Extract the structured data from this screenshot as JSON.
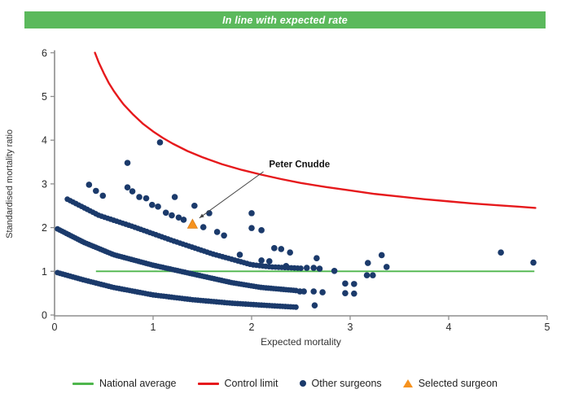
{
  "banner": {
    "text": "In line with expected rate",
    "bg_color": "#5bb95c",
    "text_color": "#ffffff"
  },
  "chart_data": {
    "type": "scatter",
    "title": "",
    "xlabel": "Expected mortality",
    "ylabel": "Standardised mortality ratio",
    "xlim": [
      0,
      5
    ],
    "ylim": [
      0,
      6
    ],
    "xticks": [
      "0",
      "1",
      "2",
      "3",
      "4",
      "5"
    ],
    "yticks": [
      "0",
      "1",
      "2",
      "3",
      "4",
      "5",
      "6"
    ],
    "grid": false,
    "axis_color": "#8e8e8e",
    "tick_label_color": "#2b2b2b",
    "national_average": {
      "label": "National average",
      "y": 1,
      "x_start": 0.42,
      "x_end": 4.87,
      "color": "#4eb64c"
    },
    "control_limit": {
      "label": "Control limit",
      "color": "#e6191c",
      "points": [
        [
          0.41,
          6.0
        ],
        [
          0.45,
          5.77
        ],
        [
          0.5,
          5.53
        ],
        [
          0.55,
          5.31
        ],
        [
          0.6,
          5.13
        ],
        [
          0.65,
          4.97
        ],
        [
          0.7,
          4.82
        ],
        [
          0.8,
          4.58
        ],
        [
          0.9,
          4.37
        ],
        [
          1.0,
          4.2
        ],
        [
          1.1,
          4.05
        ],
        [
          1.2,
          3.92
        ],
        [
          1.35,
          3.75
        ],
        [
          1.5,
          3.61
        ],
        [
          1.7,
          3.45
        ],
        [
          1.9,
          3.32
        ],
        [
          2.1,
          3.21
        ],
        [
          2.3,
          3.11
        ],
        [
          2.5,
          3.02
        ],
        [
          2.75,
          2.93
        ],
        [
          3.0,
          2.85
        ],
        [
          3.25,
          2.77
        ],
        [
          3.5,
          2.71
        ],
        [
          3.75,
          2.65
        ],
        [
          4.0,
          2.6
        ],
        [
          4.25,
          2.55
        ],
        [
          4.5,
          2.51
        ],
        [
          4.7,
          2.48
        ],
        [
          4.88,
          2.45
        ]
      ]
    },
    "selected_surgeon": {
      "label": "Peter Cnudde",
      "x": 1.4,
      "y": 2.07,
      "color": "#f6921e",
      "label_x": 2.16,
      "label_y": 3.45,
      "arrow_start": [
        2.12,
        3.28
      ],
      "arrow_end": [
        1.47,
        2.22
      ]
    },
    "other_surgeons": {
      "color": "#1b3a6b",
      "bands_note": "dense curved chains of surgeons; dots placed evenly along piecewise-linear anchors [expected mortality, SMR]",
      "bands": [
        {
          "anchors": [
            [
              0.03,
              0.97
            ],
            [
              0.3,
              0.8
            ],
            [
              0.6,
              0.63
            ],
            [
              1.0,
              0.46
            ],
            [
              1.4,
              0.35
            ],
            [
              1.8,
              0.27
            ],
            [
              2.15,
              0.22
            ],
            [
              2.45,
              0.18
            ]
          ],
          "dot_count": 92
        },
        {
          "anchors": [
            [
              0.03,
              1.97
            ],
            [
              0.3,
              1.66
            ],
            [
              0.6,
              1.38
            ],
            [
              1.0,
              1.14
            ],
            [
              1.4,
              0.94
            ],
            [
              1.8,
              0.74
            ],
            [
              2.1,
              0.63
            ],
            [
              2.45,
              0.56
            ]
          ],
          "dot_count": 100
        },
        {
          "anchors": [
            [
              0.13,
              2.65
            ],
            [
              0.45,
              2.28
            ],
            [
              0.8,
              2.02
            ],
            [
              1.2,
              1.7
            ],
            [
              1.6,
              1.4
            ],
            [
              2.0,
              1.15
            ],
            [
              2.2,
              1.1
            ],
            [
              2.5,
              1.07
            ]
          ],
          "dot_count": 78
        }
      ],
      "points": [
        [
          0.35,
          2.98
        ],
        [
          0.42,
          2.84
        ],
        [
          0.49,
          2.73
        ],
        [
          0.74,
          2.92
        ],
        [
          0.79,
          2.83
        ],
        [
          0.86,
          2.7
        ],
        [
          0.93,
          2.67
        ],
        [
          0.99,
          2.52
        ],
        [
          1.05,
          2.48
        ],
        [
          1.13,
          2.34
        ],
        [
          1.19,
          2.28
        ],
        [
          1.26,
          2.23
        ],
        [
          1.31,
          2.18
        ],
        [
          0.74,
          3.48
        ],
        [
          1.07,
          3.95
        ],
        [
          1.22,
          2.7
        ],
        [
          1.42,
          2.5
        ],
        [
          1.57,
          2.33
        ],
        [
          2.0,
          2.33
        ],
        [
          1.51,
          2.01
        ],
        [
          1.65,
          1.9
        ],
        [
          1.72,
          1.82
        ],
        [
          2.0,
          1.99
        ],
        [
          2.1,
          1.94
        ],
        [
          1.88,
          1.38
        ],
        [
          2.23,
          1.53
        ],
        [
          2.3,
          1.51
        ],
        [
          2.39,
          1.43
        ],
        [
          2.1,
          1.25
        ],
        [
          2.18,
          1.23
        ],
        [
          2.35,
          1.12
        ],
        [
          2.56,
          1.08
        ],
        [
          2.63,
          1.08
        ],
        [
          2.69,
          1.06
        ],
        [
          2.84,
          1.01
        ],
        [
          2.66,
          1.3
        ],
        [
          2.49,
          0.54
        ],
        [
          2.53,
          0.54
        ],
        [
          2.63,
          0.54
        ],
        [
          2.72,
          0.52
        ],
        [
          2.95,
          0.72
        ],
        [
          3.04,
          0.71
        ],
        [
          2.95,
          0.5
        ],
        [
          3.04,
          0.49
        ],
        [
          3.17,
          0.91
        ],
        [
          3.23,
          0.91
        ],
        [
          3.18,
          1.19
        ],
        [
          3.32,
          1.37
        ],
        [
          3.37,
          1.1
        ],
        [
          2.64,
          0.22
        ],
        [
          4.53,
          1.43
        ],
        [
          4.86,
          1.2
        ]
      ]
    }
  },
  "legend": {
    "items": [
      {
        "label": "National average",
        "marker": "line",
        "color": "#4eb64c"
      },
      {
        "label": "Control limit",
        "marker": "line",
        "color": "#e6191c"
      },
      {
        "label": "Other surgeons",
        "marker": "dot",
        "color": "#1b3a6b"
      },
      {
        "label": "Selected surgeon",
        "marker": "triangle",
        "color": "#f6921e"
      }
    ]
  }
}
